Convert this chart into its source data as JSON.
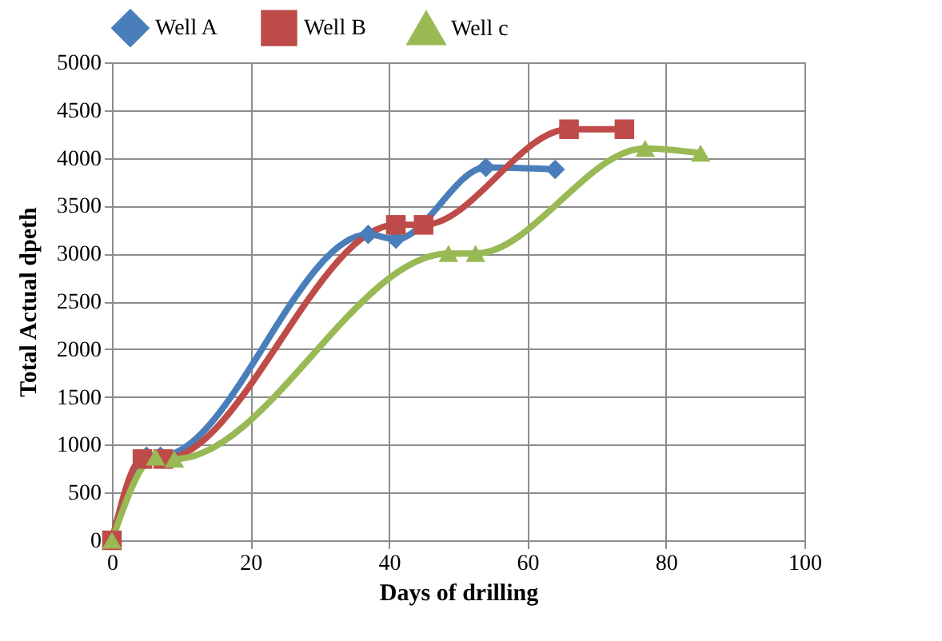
{
  "chart_data": {
    "type": "line",
    "xlabel": "Days of drilling",
    "ylabel": "Total Actual dpeth",
    "xlim": [
      0,
      100
    ],
    "xticks": [
      0,
      20,
      40,
      60,
      80,
      100
    ],
    "ylim": [
      0,
      5000
    ],
    "yticks": [
      0,
      500,
      1000,
      1500,
      2000,
      2500,
      3000,
      3500,
      4000,
      4500,
      5000
    ],
    "grid": true,
    "legend": "top",
    "line_style": "solid",
    "series": [
      {
        "name": "Well A",
        "color": "#4a7ebb",
        "marker": "diamond",
        "x": [
          0,
          5,
          7,
          37,
          41,
          54,
          64
        ],
        "values": [
          0,
          880,
          880,
          3200,
          3150,
          3900,
          3880
        ]
      },
      {
        "name": "Well B",
        "color": "#be4b48",
        "marker": "square",
        "x": [
          0,
          4.4,
          7.4,
          41,
          45,
          66,
          74
        ],
        "values": [
          0,
          850,
          850,
          3300,
          3300,
          4300,
          4300
        ]
      },
      {
        "name": "Well c",
        "color": "#98b954",
        "marker": "triangle",
        "x": [
          0,
          6.3,
          9,
          48.6,
          52.5,
          77,
          85
        ],
        "values": [
          0,
          870,
          850,
          3000,
          3000,
          4100,
          4050
        ]
      }
    ]
  }
}
